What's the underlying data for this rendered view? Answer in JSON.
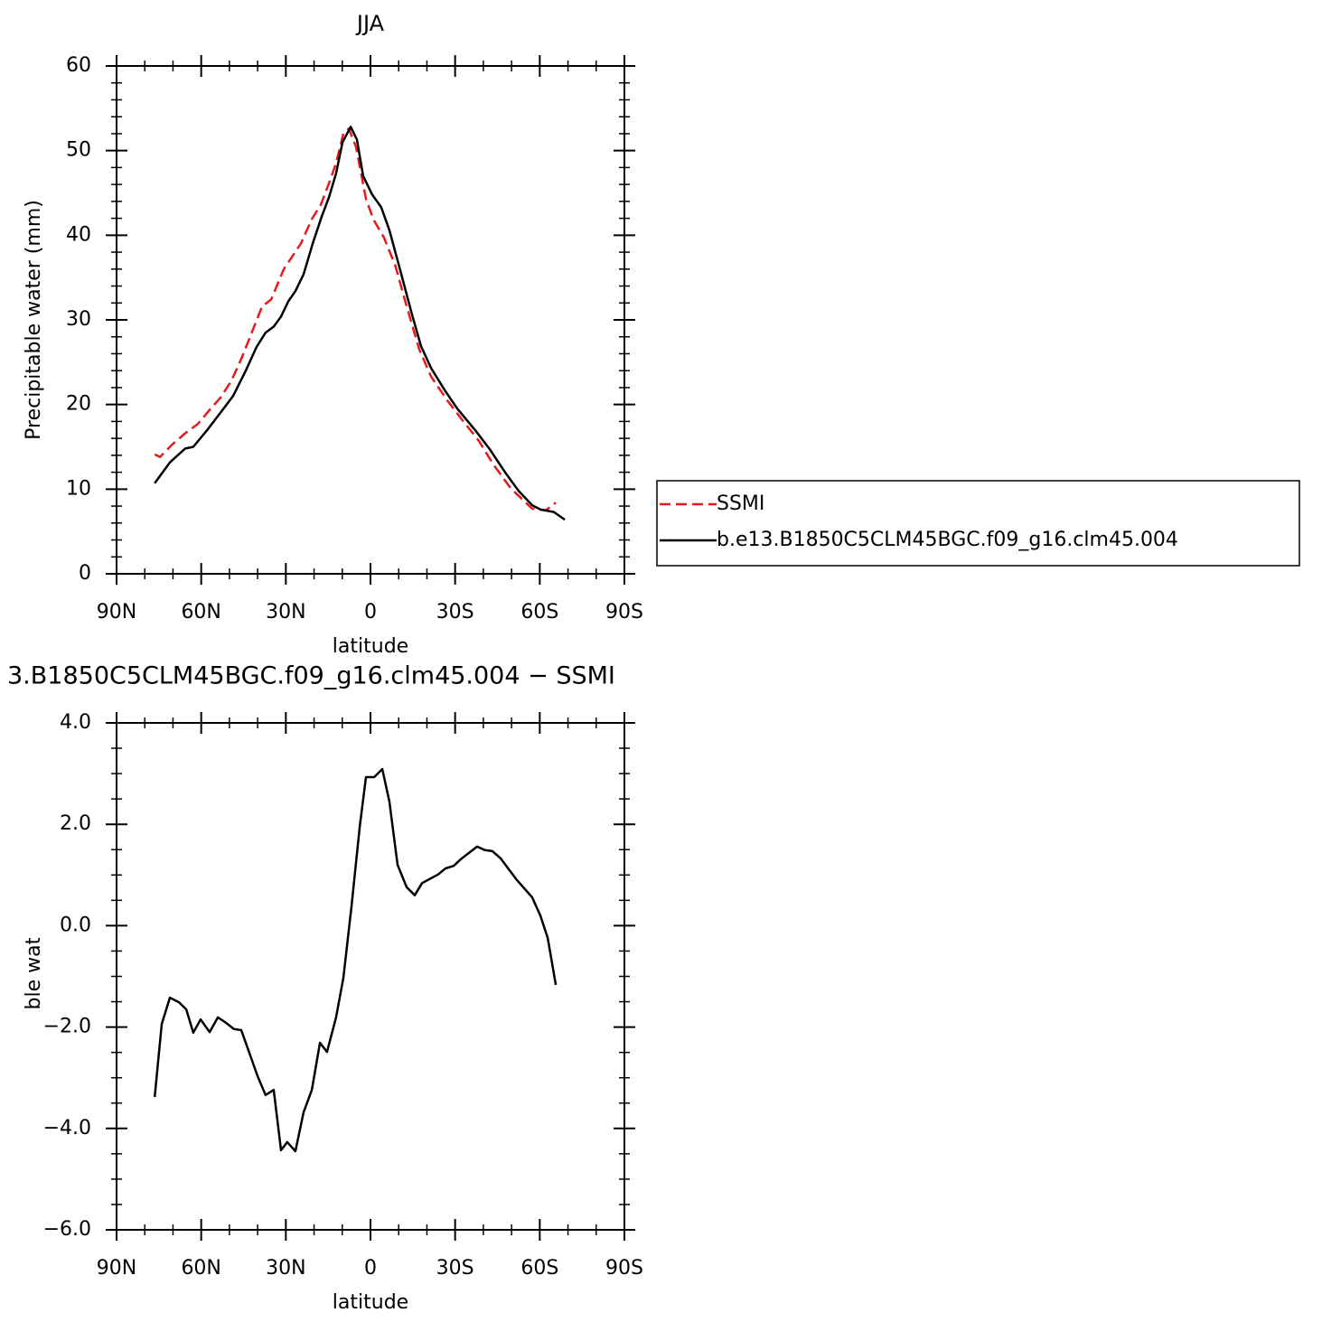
{
  "chart_data": [
    {
      "type": "line",
      "title": "JJA",
      "xlabel": "latitude",
      "ylabel": "Precipitable water (mm)",
      "xlim": [
        90,
        -90
      ],
      "xticks": [
        {
          "value": 90,
          "label": "90N"
        },
        {
          "value": 60,
          "label": "60N"
        },
        {
          "value": 30,
          "label": "30N"
        },
        0,
        {
          "value": -30,
          "label": "30S"
        },
        {
          "value": -60,
          "label": "60S"
        },
        {
          "value": -90,
          "label": "90S"
        }
      ],
      "ylim": [
        0,
        60
      ],
      "yticks": [
        0,
        10,
        20,
        30,
        40,
        50,
        60
      ],
      "legend": "right",
      "series": [
        {
          "name": "SSMI",
          "color": "#e41a1c",
          "dashed": true,
          "x": [
            76.5,
            74.6,
            70.5,
            65.7,
            61.2,
            56.7,
            53.2,
            49.3,
            45.5,
            42.3,
            38.4,
            35.2,
            30.7,
            24.7,
            20.8,
            17.6,
            14.4,
            12.2,
            9.6,
            7.7,
            5.1,
            1.6,
            -1.0,
            -4.8,
            -8.7,
            -12.5,
            -17.3,
            -21.5,
            -27.2,
            -32.7,
            -38.4,
            -43.6,
            -49.7,
            -53.8,
            -57.3,
            -62.1,
            -65.7
          ],
          "values": [
            14.1,
            13.8,
            15.2,
            16.6,
            17.7,
            19.5,
            20.8,
            22.8,
            25.6,
            28.3,
            31.6,
            32.4,
            36.0,
            39.0,
            41.9,
            43.6,
            46.4,
            48.5,
            52.0,
            52.6,
            50.4,
            44.3,
            41.9,
            39.7,
            36.5,
            32.0,
            26.5,
            23.3,
            20.5,
            18.1,
            15.7,
            12.9,
            10.1,
            8.8,
            7.7,
            7.5,
            8.4
          ]
        },
        {
          "name": "b.e13.B1850C5CLM45BGC.f09_g16.clm45.004",
          "color": "#000000",
          "dashed": false,
          "x": [
            76.5,
            71.0,
            65.7,
            62.8,
            57.6,
            52.8,
            48.7,
            44.2,
            40.4,
            37.2,
            34.3,
            31.7,
            29.1,
            26.6,
            23.7,
            20.5,
            17.3,
            14.7,
            12.2,
            9.9,
            7.0,
            4.8,
            2.6,
            -0.6,
            -3.8,
            -6.7,
            -10.6,
            -14.4,
            -17.9,
            -21.5,
            -26.3,
            -30.8,
            -37.5,
            -42.3,
            -47.7,
            -52.5,
            -57.3,
            -60.2,
            -65.0,
            -68.9
          ],
          "values": [
            10.7,
            13.2,
            14.8,
            15.0,
            17.1,
            19.2,
            21.0,
            24.0,
            26.8,
            28.5,
            29.2,
            30.4,
            32.2,
            33.4,
            35.4,
            39.0,
            42.2,
            44.5,
            47.3,
            51.0,
            52.8,
            51.3,
            47.0,
            44.8,
            43.3,
            40.6,
            35.8,
            31.0,
            26.9,
            24.3,
            21.7,
            19.5,
            16.8,
            14.7,
            12.0,
            9.8,
            8.1,
            7.6,
            7.3,
            6.4
          ]
        }
      ]
    },
    {
      "type": "line",
      "title": "3.B1850C5CLM45BGC.f09_g16.clm45.004 − SSMI",
      "xlabel": "latitude",
      "ylabel": "Precipitable water (mm)",
      "xlim": [
        90,
        -90
      ],
      "xticks": [
        {
          "value": 90,
          "label": "90N"
        },
        {
          "value": 60,
          "label": "60N"
        },
        {
          "value": 30,
          "label": "30N"
        },
        0,
        {
          "value": -30,
          "label": "30S"
        },
        {
          "value": -60,
          "label": "60S"
        },
        {
          "value": -90,
          "label": "90S"
        }
      ],
      "ylim": [
        -6,
        4
      ],
      "yticks": [
        {
          "value": -6,
          "label": "−6.0"
        },
        {
          "value": -4,
          "label": "−4.0"
        },
        {
          "value": -2,
          "label": "−2.0"
        },
        {
          "value": 0,
          "label": "0.0"
        },
        {
          "value": 2,
          "label": "2.0"
        },
        {
          "value": 4,
          "label": "4.0"
        }
      ],
      "series": [
        {
          "color": "#000000",
          "dashed": false,
          "x": [
            76.5,
            74.0,
            71.1,
            67.9,
            65.3,
            62.8,
            60.2,
            57.0,
            54.1,
            51.6,
            48.4,
            45.8,
            40.0,
            37.2,
            34.3,
            31.7,
            29.5,
            26.6,
            23.7,
            20.8,
            17.9,
            15.4,
            12.2,
            9.6,
            6.7,
            3.8,
            1.6,
            -1.3,
            -4.2,
            -6.7,
            -9.6,
            -12.8,
            -15.7,
            -18.3,
            -24.0,
            -26.6,
            -29.5,
            -32.0,
            -37.8,
            -40.6,
            -43.2,
            -46.1,
            -51.6,
            -57.3,
            -60.2,
            -62.8,
            -65.7
          ],
          "values": [
            -3.38,
            -1.94,
            -1.42,
            -1.51,
            -1.65,
            -2.11,
            -1.85,
            -2.1,
            -1.81,
            -1.9,
            -2.04,
            -2.06,
            -2.97,
            -3.34,
            -3.24,
            -4.43,
            -4.27,
            -4.45,
            -3.68,
            -3.24,
            -2.31,
            -2.49,
            -1.81,
            -1.03,
            0.4,
            1.95,
            2.93,
            2.93,
            3.09,
            2.45,
            1.2,
            0.76,
            0.6,
            0.84,
            1.01,
            1.13,
            1.18,
            1.31,
            1.56,
            1.49,
            1.47,
            1.33,
            0.92,
            0.56,
            0.2,
            -0.24,
            -1.17
          ]
        }
      ]
    }
  ]
}
